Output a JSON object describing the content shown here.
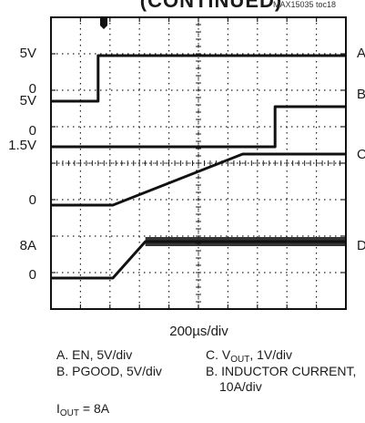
{
  "header": {
    "title_fragment": "(CONTINUED)",
    "doc_id": "MAX15035 toc18"
  },
  "left_labels": [
    "5V",
    "0",
    "5V",
    "0",
    "1.5V",
    "0",
    "8A",
    "0"
  ],
  "right_labels": [
    "A",
    "B",
    "C",
    "D"
  ],
  "timebase": "200µs/div",
  "captions": {
    "a": "A. EN, 5V/div",
    "b": "B. PGOOD, 5V/div",
    "c_prefix": "C. V",
    "c_sub": "OUT",
    "c_suffix": ", 1V/div",
    "d_line1": "B. INDUCTOR CURRENT,",
    "d_line2": "10A/div",
    "iout_prefix": "I",
    "iout_sub": "OUT",
    "iout_suffix": " = 8A"
  },
  "colors": {
    "trace": "#111111",
    "grid": "#222222",
    "border": "#111111"
  },
  "chart_data": {
    "type": "line",
    "title": "",
    "xlabel": "200µs/div",
    "x_divisions": 10,
    "y_divisions": 8,
    "x_unit": "div",
    "series": [
      {
        "name": "A",
        "x": [
          0,
          1.6,
          1.6,
          10
        ],
        "y": [
          5.7,
          5.7,
          6.95,
          6.95
        ]
      },
      {
        "name": "B",
        "x": [
          0,
          7.6,
          7.6,
          10
        ],
        "y": [
          4.45,
          4.45,
          5.55,
          5.55
        ]
      },
      {
        "name": "C",
        "x": [
          0,
          2.1,
          6.5,
          10
        ],
        "y": [
          2.85,
          2.85,
          4.25,
          4.25
        ]
      },
      {
        "name": "D",
        "x": [
          0,
          2.1,
          3.2,
          10
        ],
        "y": [
          0.85,
          0.85,
          1.85,
          1.85
        ]
      }
    ]
  }
}
